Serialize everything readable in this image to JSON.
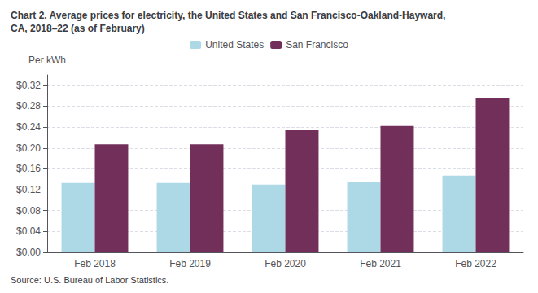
{
  "chart_data": {
    "type": "bar",
    "title": "Chart 2. Average prices for electricity, the United States and San Francisco-Oakland-Hayward,\nCA, 2018–22 (as of February)",
    "ylabel": "Per kWh",
    "source": "Source: U.S. Bureau of Labor Statistics.",
    "categories": [
      "Feb 2018",
      "Feb 2019",
      "Feb 2020",
      "Feb 2021",
      "Feb 2022"
    ],
    "series": [
      {
        "name": "United States",
        "color": "#ADD8E6",
        "values": [
          0.133,
          0.133,
          0.13,
          0.134,
          0.147
        ]
      },
      {
        "name": "San Francisco",
        "color": "#722F5A",
        "values": [
          0.207,
          0.207,
          0.234,
          0.242,
          0.295
        ]
      }
    ],
    "ylim": [
      0,
      0.34
    ],
    "yticks": [
      {
        "value": 0.0,
        "label": "$0.00"
      },
      {
        "value": 0.04,
        "label": "$0.04"
      },
      {
        "value": 0.08,
        "label": "$0.08"
      },
      {
        "value": 0.12,
        "label": "$0.12"
      },
      {
        "value": 0.16,
        "label": "$0.16"
      },
      {
        "value": 0.2,
        "label": "$0.20"
      },
      {
        "value": 0.24,
        "label": "$0.24"
      },
      {
        "value": 0.28,
        "label": "$0.28"
      },
      {
        "value": 0.32,
        "label": "$0.32"
      }
    ],
    "grid": true,
    "legend": "top"
  }
}
